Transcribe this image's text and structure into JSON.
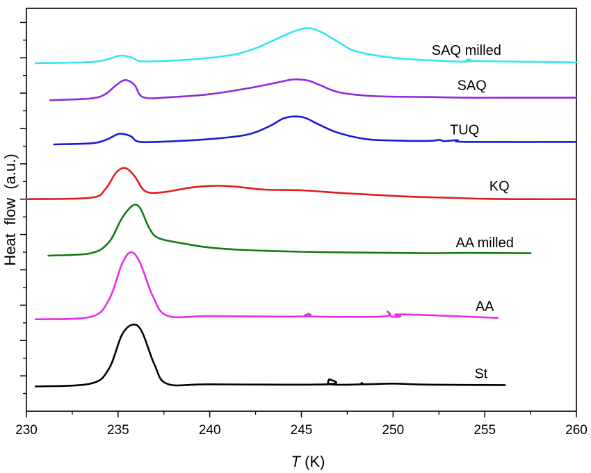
{
  "chart_data": {
    "type": "line",
    "xlabel_italic": "T",
    "xlabel_unit": " (K)",
    "ylabel": "Heat  flow  (a.u.)",
    "xlim": [
      230,
      260
    ],
    "xticks": [
      "230",
      "235",
      "240",
      "245",
      "250",
      "255",
      "260"
    ],
    "y_tick_labels": false,
    "grid": false,
    "legend": "none (labels placed next to each curve)",
    "series": [
      {
        "name": "SAQ milled",
        "color": "#33e6f0",
        "offset": 9.85,
        "label_x": 254.0,
        "x": [
          230.5,
          233.5,
          234.5,
          235.0,
          235.3,
          235.8,
          236.3,
          238,
          240,
          241.5,
          242.5,
          243.5,
          244.5,
          245.3,
          246,
          247,
          248,
          250,
          252,
          254,
          254.2,
          254.5,
          260
        ],
        "y": [
          0.0,
          0.03,
          0.12,
          0.2,
          0.21,
          0.15,
          0.05,
          0.07,
          0.15,
          0.26,
          0.42,
          0.65,
          0.88,
          0.99,
          0.9,
          0.6,
          0.33,
          0.15,
          0.08,
          0.04,
          0.1,
          0.06,
          0.02
        ]
      },
      {
        "name": "SAQ",
        "color": "#8b2be2",
        "offset": 8.85,
        "label_x": 254.3,
        "x": [
          231.3,
          233.5,
          234.3,
          234.9,
          235.4,
          235.9,
          236.4,
          238,
          240,
          242,
          243.5,
          244.3,
          244.8,
          245.4,
          246,
          247,
          248.5,
          250,
          252,
          254,
          256,
          260
        ],
        "y": [
          -0.05,
          0.0,
          0.12,
          0.38,
          0.52,
          0.38,
          0.03,
          0.04,
          0.12,
          0.28,
          0.43,
          0.52,
          0.54,
          0.5,
          0.38,
          0.18,
          0.08,
          0.05,
          0.04,
          0.02,
          0.02,
          0.02
        ]
      },
      {
        "name": "TUQ",
        "color": "#1a1ad6",
        "offset": 7.6,
        "label_x": 253.9,
        "x": [
          231.5,
          233.5,
          234.3,
          234.9,
          235.2,
          235.7,
          236.2,
          238,
          240,
          242,
          243.2,
          244,
          244.6,
          245.2,
          246,
          247,
          248.5,
          250,
          252,
          252.5,
          252.8,
          253.5,
          254,
          260
        ],
        "y": [
          -0.05,
          -0.02,
          0.07,
          0.22,
          0.25,
          0.18,
          0.02,
          0.04,
          0.1,
          0.22,
          0.45,
          0.68,
          0.74,
          0.7,
          0.5,
          0.28,
          0.1,
          0.06,
          0.05,
          0.08,
          0.04,
          0.07,
          0.02,
          0.02
        ]
      },
      {
        "name": "KQ",
        "color": "#e01c1c",
        "offset": 6.0,
        "label_x": 255.8,
        "x": [
          230.0,
          233.5,
          234.3,
          234.9,
          235.4,
          235.9,
          236.5,
          237.5,
          239,
          240.3,
          241.5,
          243,
          245,
          247,
          249,
          251,
          253,
          255,
          257,
          260
        ],
        "y": [
          0.0,
          0.04,
          0.28,
          0.76,
          0.88,
          0.65,
          0.22,
          0.2,
          0.33,
          0.38,
          0.35,
          0.27,
          0.25,
          0.18,
          0.12,
          0.07,
          0.04,
          0.01,
          0.0,
          0.0
        ]
      },
      {
        "name": "AA milled",
        "color": "#137a13",
        "offset": 4.4,
        "label_x": 255.0,
        "x": [
          231.2,
          233.5,
          234.5,
          235.2,
          235.8,
          236.2,
          236.7,
          237.2,
          238.5,
          240,
          242,
          245,
          248,
          250,
          252,
          254,
          257.5
        ],
        "y": [
          0.0,
          0.07,
          0.38,
          1.05,
          1.42,
          1.35,
          0.78,
          0.5,
          0.35,
          0.23,
          0.16,
          0.11,
          0.09,
          0.08,
          0.07,
          0.08,
          0.07
        ]
      },
      {
        "name": "AA",
        "color": "#e62ee6",
        "offset": 2.6,
        "label_x": 255.0,
        "x": [
          230.5,
          233.5,
          234.5,
          235.2,
          235.7,
          236.2,
          236.9,
          237.7,
          240,
          245,
          245.4,
          245.5,
          249.5,
          249.7,
          249.9,
          250.4,
          250.5,
          255.7
        ],
        "y": [
          0.0,
          0.07,
          0.55,
          1.55,
          1.9,
          1.6,
          0.65,
          0.1,
          0.09,
          0.08,
          0.16,
          0.08,
          0.08,
          0.22,
          0.08,
          0.08,
          0.14,
          0.04
        ]
      },
      {
        "name": "St",
        "color": "#000000",
        "offset": 0.7,
        "label_x": 254.8,
        "x": [
          230.5,
          233.5,
          234.5,
          235.2,
          235.8,
          236.3,
          237,
          237.7,
          240,
          246.4,
          246.5,
          246.6,
          248.2,
          248.3,
          248.4,
          250,
          252,
          256.1
        ],
        "y": [
          0.0,
          0.08,
          0.5,
          1.45,
          1.75,
          1.55,
          0.6,
          0.07,
          0.06,
          0.06,
          0.2,
          0.06,
          0.06,
          0.1,
          0.06,
          0.08,
          0.05,
          0.04
        ]
      }
    ]
  }
}
